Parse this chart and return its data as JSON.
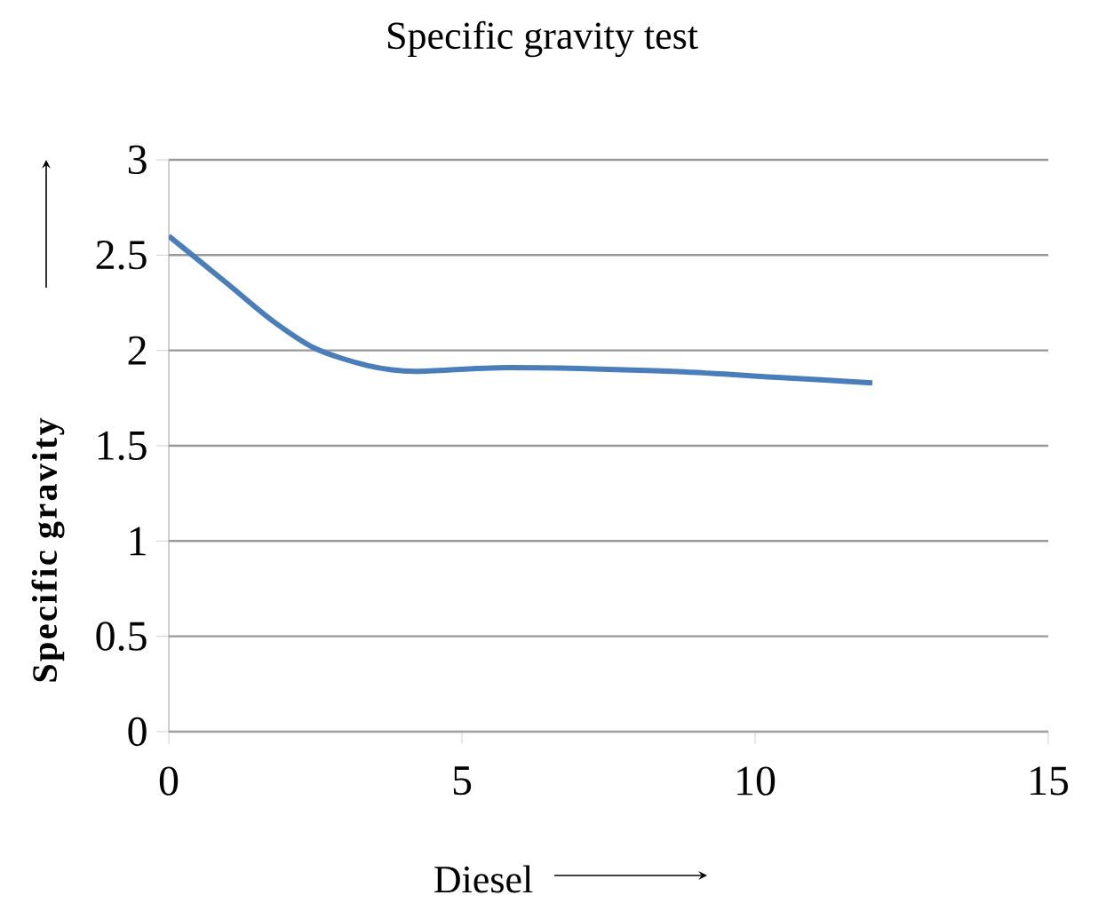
{
  "chart_data": {
    "type": "line",
    "title": "Specific gravity test",
    "xlabel": "Diesel",
    "ylabel": "Specific gravity",
    "x": [
      0,
      1,
      1.75,
      2.5,
      3.4,
      4.2,
      5.8,
      8.6,
      10.3,
      12
    ],
    "series": [
      {
        "color": "#4a7ebb",
        "values": [
          2.6,
          2.35,
          2.16,
          2.01,
          1.92,
          1.89,
          1.91,
          1.89,
          1.86,
          1.83
        ]
      }
    ],
    "xlim": [
      0,
      15
    ],
    "xticks": [
      0,
      5,
      10,
      15
    ],
    "ylim": [
      0,
      3
    ],
    "yticks": [
      0,
      0.5,
      1,
      1.5,
      2,
      2.5,
      3
    ],
    "grid": "y",
    "marker": "none",
    "line_style": "solid"
  }
}
